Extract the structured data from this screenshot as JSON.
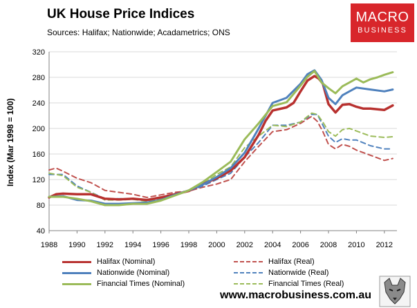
{
  "title": "UK House Price Indices",
  "subtitle": "Sources: Halifax; Nationwide; Acadametrics; ONS",
  "logo": {
    "line1": "MACRO",
    "line2": "BUSINESS"
  },
  "footer": "www.macrobusiness.com.au",
  "chart_data": {
    "type": "line",
    "title": "UK House Price Indices",
    "xlabel": "",
    "ylabel": "Index (Mar 1998 = 100)",
    "xlim": [
      1988,
      2012.9
    ],
    "ylim": [
      40,
      320
    ],
    "xticks": [
      1988,
      1990,
      1992,
      1994,
      1996,
      1998,
      2000,
      2002,
      2004,
      2006,
      2008,
      2010,
      2012
    ],
    "yticks": [
      40,
      80,
      120,
      160,
      200,
      240,
      280,
      320
    ],
    "grid": true,
    "legend_position": "bottom",
    "series": [
      {
        "name": "Halifax (Nominal)",
        "color": "#b8312f",
        "style": "solid",
        "width": 3.5,
        "x": [
          1988,
          1988.5,
          1989,
          1990,
          1991,
          1992,
          1993,
          1994,
          1995,
          1996,
          1997,
          1998,
          1999,
          2000,
          2001,
          2002,
          2003,
          2003.5,
          2004,
          2005,
          2005.5,
          2006,
          2006.5,
          2007,
          2007.3,
          2007.6,
          2008,
          2008.5,
          2009,
          2009.5,
          2010,
          2010.5,
          2011,
          2011.5,
          2012,
          2012.6
        ],
        "y": [
          92,
          97,
          98,
          97,
          97,
          90,
          89,
          90,
          88,
          92,
          97,
          102,
          113,
          122,
          134,
          155,
          190,
          212,
          228,
          233,
          240,
          258,
          275,
          282,
          278,
          270,
          238,
          225,
          237,
          238,
          234,
          231,
          231,
          230,
          229,
          236
        ]
      },
      {
        "name": "Halifax (Real)",
        "color": "#c0504d",
        "style": "dashed",
        "width": 2,
        "x": [
          1988,
          1988.5,
          1989,
          1990,
          1991,
          1992,
          1993,
          1994,
          1995,
          1996,
          1997,
          1998,
          1999,
          2000,
          2001,
          2002,
          2003,
          2004,
          2005,
          2006,
          2006.8,
          2007.2,
          2007.6,
          2008,
          2008.5,
          2009,
          2009.5,
          2010,
          2011,
          2012,
          2012.6
        ],
        "y": [
          135,
          138,
          133,
          122,
          115,
          103,
          100,
          97,
          92,
          96,
          100,
          102,
          108,
          113,
          120,
          148,
          172,
          195,
          198,
          208,
          219,
          211,
          195,
          175,
          168,
          175,
          172,
          166,
          158,
          150,
          153
        ]
      },
      {
        "name": "Nationwide (Nominal)",
        "color": "#4f81bd",
        "style": "solid",
        "width": 3,
        "x": [
          1988,
          1989,
          1990,
          1991,
          1992,
          1993,
          1994,
          1995,
          1996,
          1997,
          1998,
          1999,
          2000,
          2001,
          2002,
          2003,
          2004,
          2005,
          2006,
          2006.5,
          2007,
          2007.5,
          2008,
          2008.5,
          2009,
          2009.5,
          2010,
          2011,
          2012,
          2012.6
        ],
        "y": [
          93,
          94,
          88,
          87,
          82,
          82,
          83,
          84,
          88,
          96,
          103,
          112,
          124,
          138,
          162,
          200,
          240,
          248,
          270,
          285,
          291,
          276,
          248,
          238,
          252,
          258,
          264,
          261,
          258,
          261
        ]
      },
      {
        "name": "Nationwide (Real)",
        "color": "#4f81bd",
        "style": "dashed",
        "width": 2,
        "x": [
          1988,
          1989,
          1990,
          1991,
          1992,
          1993,
          1994,
          1995,
          1996,
          1997,
          1998,
          1999,
          2000,
          2001,
          2002,
          2003,
          2004,
          2005,
          2006,
          2006.8,
          2007.2,
          2007.6,
          2008,
          2008.5,
          2009,
          2009.5,
          2010,
          2011,
          2012,
          2012.6
        ],
        "y": [
          128,
          128,
          110,
          100,
          90,
          90,
          90,
          88,
          92,
          98,
          102,
          110,
          120,
          130,
          155,
          178,
          205,
          205,
          210,
          222,
          222,
          205,
          188,
          178,
          184,
          182,
          182,
          173,
          168,
          168
        ]
      },
      {
        "name": "Financial Times (Nominal)",
        "color": "#9bbb59",
        "style": "solid",
        "width": 3,
        "x": [
          1988,
          1989,
          1990,
          1991,
          1992,
          1993,
          1994,
          1995,
          1996,
          1997,
          1998,
          1999,
          2000,
          2001,
          2002,
          2003,
          2004,
          2005,
          2006,
          2006.5,
          2007,
          2007.5,
          2008,
          2008.5,
          2009,
          2009.5,
          2010,
          2010.5,
          2011,
          2011.5,
          2012,
          2012.6
        ],
        "y": [
          93,
          93,
          90,
          86,
          80,
          80,
          82,
          82,
          87,
          95,
          103,
          116,
          132,
          148,
          183,
          208,
          235,
          241,
          267,
          281,
          290,
          272,
          263,
          255,
          266,
          272,
          278,
          272,
          277,
          280,
          284,
          288
        ]
      },
      {
        "name": "Financial Times (Real)",
        "color": "#9bbb59",
        "style": "dashed",
        "width": 2,
        "x": [
          1988,
          1989,
          1990,
          1991,
          1992,
          1993,
          1994,
          1995,
          1996,
          1997,
          1998,
          1999,
          2000,
          2001,
          2002,
          2003,
          2004,
          2005,
          2006,
          2006.8,
          2007.2,
          2007.6,
          2008,
          2008.5,
          2009,
          2009.5,
          2010,
          2011,
          2012,
          2012.6
        ],
        "y": [
          130,
          126,
          108,
          100,
          88,
          88,
          89,
          86,
          90,
          97,
          102,
          113,
          128,
          140,
          170,
          188,
          205,
          203,
          210,
          224,
          222,
          210,
          195,
          188,
          198,
          200,
          196,
          188,
          186,
          187
        ]
      }
    ]
  }
}
